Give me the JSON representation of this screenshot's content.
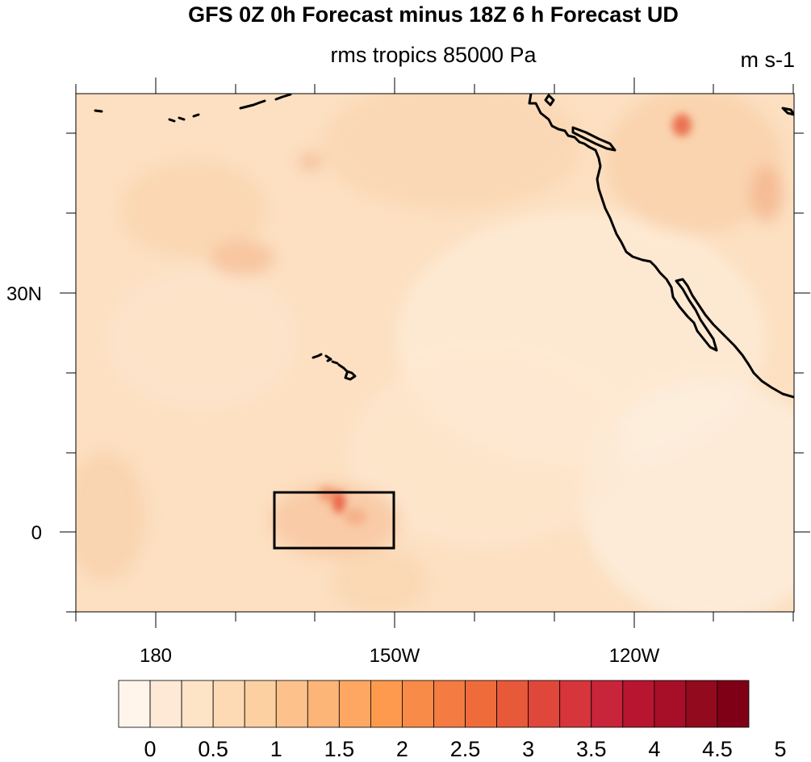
{
  "title": "GFS 0Z 0h Forecast minus 18Z 6 h Forecast UD",
  "subtitle": "rms tropics 85000 Pa",
  "units": "m s-1",
  "map": {
    "projection": "cylindrical equidistant",
    "background_color": "#fce0c1",
    "lon_labels": [
      "180",
      "150W",
      "120W"
    ],
    "lat_labels": [
      "30N",
      "0"
    ],
    "highlight_box": "tropics region around the equator near 160W",
    "coastline_color": "#000000"
  },
  "colorbar": {
    "tick_labels": [
      "0",
      "0.5",
      "1",
      "1.5",
      "2",
      "2.5",
      "3",
      "3.5",
      "4",
      "4.5",
      "5"
    ],
    "colors": [
      "#fff5eb",
      "#fee9d6",
      "#fde4c6",
      "#fddab4",
      "#fdd0a2",
      "#fdc28c",
      "#fdb477",
      "#fda762",
      "#fd9a4e",
      "#f88b47",
      "#f47b41",
      "#ef6c3a",
      "#e8593a",
      "#e0473b",
      "#d5353b",
      "#c8243a",
      "#b81630",
      "#a60f27",
      "#920a1e",
      "#7f0016"
    ]
  }
}
